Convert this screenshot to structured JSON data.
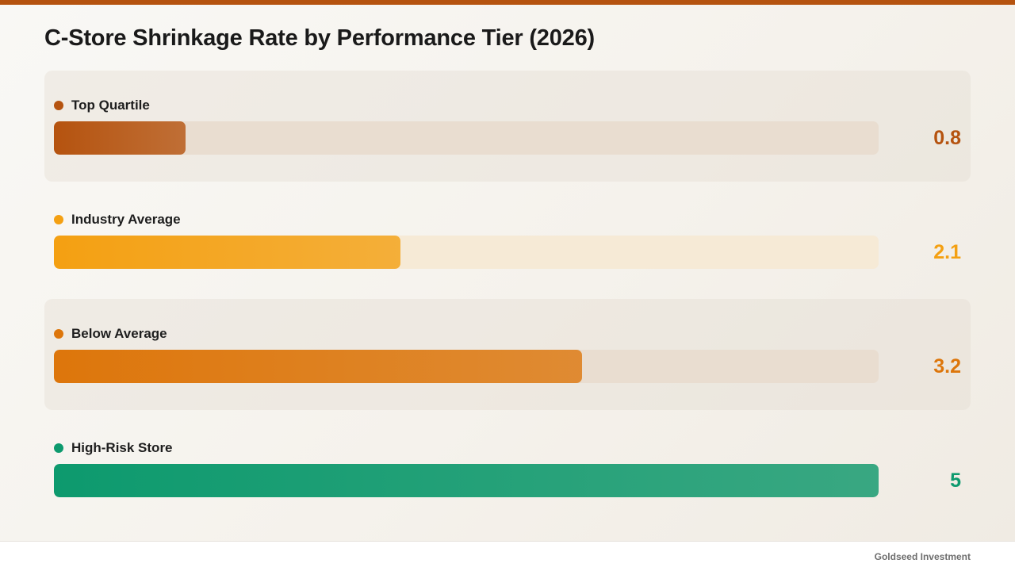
{
  "title": "C-Store Shrinkage Rate by Performance Tier (2026)",
  "footer": "Goldseed Investment",
  "chart_data": {
    "type": "bar",
    "orientation": "horizontal",
    "title": "C-Store Shrinkage Rate by Performance Tier (2026)",
    "xlim": [
      0,
      5
    ],
    "categories": [
      "Top Quartile",
      "Industry Average",
      "Below Average",
      "High-Risk Store"
    ],
    "values": [
      0.8,
      2.1,
      3.2,
      5
    ],
    "value_labels": [
      "0.8",
      "2.1",
      "3.2",
      "5"
    ],
    "colors": [
      "#b5530f",
      "#f4a012",
      "#dd760b",
      "#0d9a6e"
    ],
    "track_colors": [
      "#e9ddd0",
      "#f6ead6",
      "#e9ddd0",
      "#e9ddd0"
    ],
    "shaded_rows": [
      true,
      false,
      true,
      false
    ]
  }
}
